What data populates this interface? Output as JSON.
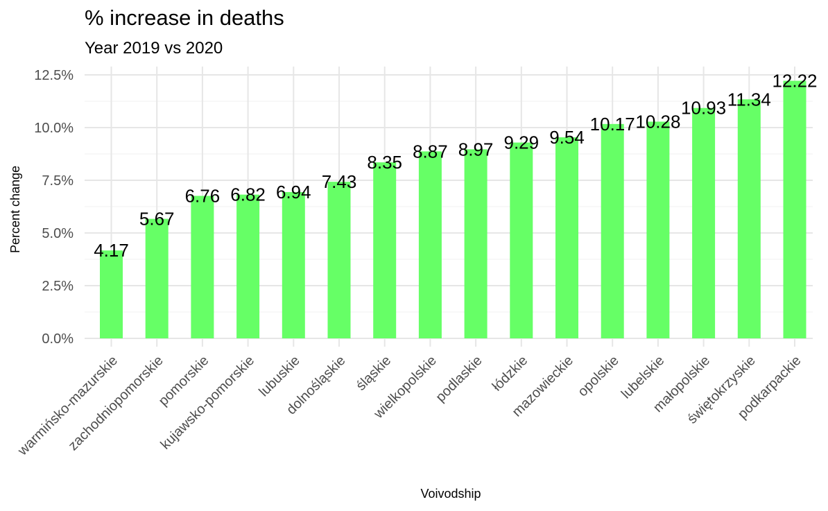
{
  "chart_data": {
    "type": "bar",
    "title": "% increase in deaths",
    "subtitle": "Year 2019 vs 2020",
    "xlabel": "Voivodship",
    "ylabel": "Percent change",
    "ylim": [
      0,
      12.8
    ],
    "y_ticks": [
      0,
      2.5,
      5,
      7.5,
      10,
      12.5
    ],
    "y_tick_labels": [
      "0.0%",
      "2.5%",
      "5.0%",
      "7.5%",
      "10.0%",
      "12.5%"
    ],
    "grid": true,
    "legend": "none",
    "bar_color": "#66ff66",
    "categories": [
      "warmińsko-mazurskie",
      "zachodniopomorskie",
      "pomorskie",
      "kujawsko-pomorskie",
      "lubuskie",
      "dolnośląskie",
      "śląskie",
      "wielkopolskie",
      "podlaskie",
      "łódzkie",
      "mazowieckie",
      "opolskie",
      "lubelskie",
      "małopolskie",
      "świętokrzyskie",
      "podkarpackie"
    ],
    "values": [
      4.17,
      5.67,
      6.76,
      6.82,
      6.94,
      7.43,
      8.35,
      8.87,
      8.97,
      9.29,
      9.54,
      10.17,
      10.28,
      10.93,
      11.34,
      12.22
    ],
    "data_labels": [
      "4.17",
      "5.67",
      "6.76",
      "6.82",
      "6.94",
      "7.43",
      "8.35",
      "8.87",
      "8.97",
      "9.29",
      "9.54",
      "10.17",
      "10.28",
      "10.93",
      "11.34",
      "12.22"
    ]
  }
}
